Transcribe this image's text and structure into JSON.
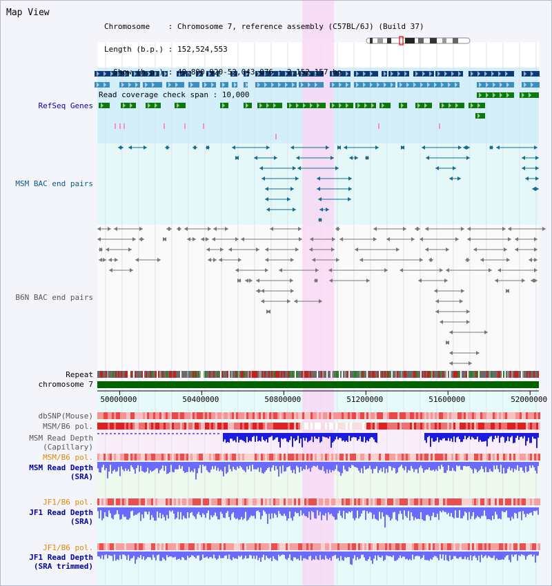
{
  "header": {
    "title": "Map View",
    "info_lines": [
      "Chromosome    : Chromosome 7, reference assembly (C57BL/6J) (Build 37)",
      "Length (b.p.) : 152,524,553",
      "  Show (b.p.) : 49,890,920-52,043,076 : 2,152,157 bp",
      "Read coverage check span : 10,000"
    ]
  },
  "tracks": {
    "refseq": "RefSeq Genes",
    "msm_bac": "MSM BAC end pairs",
    "b6n_bac": "B6N BAC end pairs",
    "repeat": "Repeat",
    "chromosome": "chromosome 7",
    "dbsnp": "dbSNP(Mouse)",
    "msm_b6_pol": "MSM/B6 pol.",
    "msm_depth_cap_1": "MSM Read Depth",
    "msm_depth_cap_2": "(Capillary)",
    "msm_b6_pol_sra": "MSM/B6 pol.",
    "msm_depth_sra_1": "MSM Read Depth",
    "msm_depth_sra_2": "(SRA)",
    "jf1_b6_pol": "JF1/B6 pol.",
    "jf1_depth_sra_1": "JF1 Read Depth",
    "jf1_depth_sra_2": "(SRA)",
    "jf1_b6_pol_trim": "JF1/B6 pol.",
    "jf1_depth_trim_1": "JF1 Read Depth",
    "jf1_depth_trim_2": "(SRA trimmed)"
  },
  "ruler": {
    "start_bp": 49890920,
    "end_bp": 52043076,
    "ticks": [
      "50000000",
      "50400000",
      "50800000",
      "51200000",
      "51600000",
      "52000000"
    ]
  },
  "highlight": {
    "start_bp": 50890000,
    "end_bp": 51045000
  },
  "colors": {
    "gene_navy": "#0a3a7a",
    "gene_light": "#3a8fbf",
    "gene_green": "#0a7a0a",
    "highlight": "#f8d8f4",
    "refseq_bg": "#d4eefa",
    "bac_bg": "#e4f8f8",
    "chromosome": "#006400",
    "depth_dark": "#1a1ae0",
    "depth_light": "#6a6aff"
  }
}
